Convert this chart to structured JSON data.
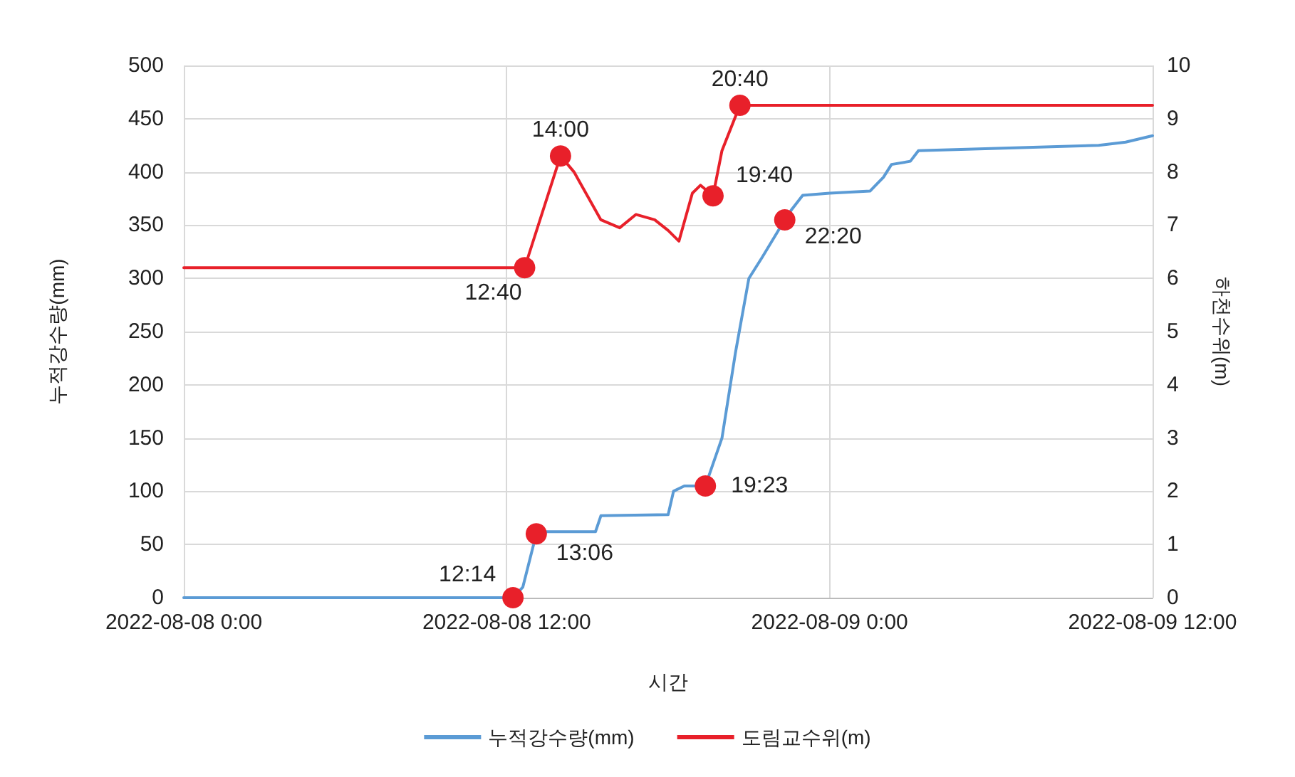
{
  "chart_data": {
    "type": "line",
    "xlabel": "시간",
    "ylabel": "누적강수량(mm)",
    "y2label": "하천수위(m)",
    "xlim": [
      "2022-08-08T00:00",
      "2022-08-09T12:00"
    ],
    "xticks": [
      {
        "value": "2022-08-08T00:00",
        "label": "2022-08-08 0:00"
      },
      {
        "value": "2022-08-08T12:00",
        "label": "2022-08-08 12:00"
      },
      {
        "value": "2022-08-09T00:00",
        "label": "2022-08-09 0:00"
      },
      {
        "value": "2022-08-09T12:00",
        "label": "2022-08-09 12:00"
      }
    ],
    "ylim": [
      0,
      500
    ],
    "yticks": [
      0,
      50,
      100,
      150,
      200,
      250,
      300,
      350,
      400,
      450,
      500
    ],
    "y2lim": [
      0,
      10
    ],
    "y2ticks": [
      0,
      1,
      2,
      3,
      4,
      5,
      6,
      7,
      8,
      9,
      10
    ],
    "grid": true,
    "legend": "bottom",
    "marker": "none",
    "line_style": "solid",
    "series": [
      {
        "name": "누적강수량(mm)",
        "color": "#5b9bd5",
        "x": [
          "2022-08-08T00:00",
          "2022-08-08T12:14",
          "2022-08-08T12:36",
          "2022-08-08T13:06",
          "2022-08-08T13:30",
          "2022-08-08T15:18",
          "2022-08-08T15:30",
          "2022-08-08T18:00",
          "2022-08-08T18:12",
          "2022-08-08T18:36",
          "2022-08-08T19:23",
          "2022-08-08T20:00",
          "2022-08-08T20:30",
          "2022-08-08T21:00",
          "2022-08-08T21:30",
          "2022-08-08T22:20",
          "2022-08-08T22:36",
          "2022-08-08T23:00",
          "2022-08-09T00:00",
          "2022-08-09T01:30",
          "2022-08-09T02:00",
          "2022-08-09T02:18",
          "2022-08-09T03:00",
          "2022-08-09T03:18",
          "2022-08-09T06:00",
          "2022-08-09T10:00",
          "2022-08-09T11:00",
          "2022-08-09T12:00"
        ],
        "values": [
          0,
          0,
          10,
          60,
          62,
          62,
          77,
          78,
          100,
          105,
          105,
          150,
          230,
          300,
          320,
          355,
          365,
          378,
          380,
          382,
          395,
          407,
          410,
          420,
          422,
          425,
          428,
          434
        ]
      },
      {
        "name": "도림교수위(m)",
        "color": "#e8202a",
        "axis": "y2",
        "x": [
          "2022-08-08T00:00",
          "2022-08-08T12:40",
          "2022-08-08T14:00",
          "2022-08-08T14:30",
          "2022-08-08T15:30",
          "2022-08-08T16:12",
          "2022-08-08T16:48",
          "2022-08-08T17:30",
          "2022-08-08T18:00",
          "2022-08-08T18:24",
          "2022-08-08T18:54",
          "2022-08-08T19:12",
          "2022-08-08T19:40",
          "2022-08-08T20:00",
          "2022-08-08T20:40",
          "2022-08-09T12:00"
        ],
        "values": [
          6.2,
          6.2,
          8.3,
          8.0,
          7.1,
          6.95,
          7.2,
          7.1,
          6.9,
          6.7,
          7.6,
          7.75,
          7.55,
          8.4,
          9.25,
          9.25
        ]
      },
      {
        "type": "scatter",
        "marker": "circle",
        "color": "#e8202a",
        "x": [
          "2022-08-08T12:14",
          "2022-08-08T13:06",
          "2022-08-08T19:23",
          "2022-08-08T22:20"
        ],
        "values": [
          0,
          60,
          105,
          355
        ]
      },
      {
        "type": "scatter",
        "marker": "circle",
        "color": "#e8202a",
        "axis": "y2",
        "x": [
          "2022-08-08T12:40",
          "2022-08-08T14:00",
          "2022-08-08T19:40",
          "2022-08-08T20:40"
        ],
        "values": [
          6.2,
          8.3,
          7.55,
          9.25
        ]
      }
    ],
    "annotations": [
      "12:14",
      "13:06",
      "19:23",
      "22:20",
      "12:40",
      "14:00",
      "19:40",
      "20:40"
    ]
  }
}
